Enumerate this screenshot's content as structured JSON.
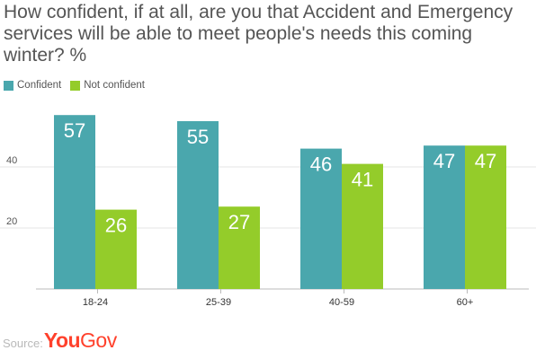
{
  "title": "How confident, if at all, are you that Accident and Emergency services will be able to meet people's needs this coming winter? %",
  "legend": [
    {
      "label": "Confident",
      "color": "#4aa7ad"
    },
    {
      "label": "Not confident",
      "color": "#94cc2a"
    }
  ],
  "source": {
    "label": "Source:",
    "brand_a": "You",
    "brand_b": "Gov"
  },
  "chart_data": {
    "type": "bar",
    "categories": [
      "18-24",
      "25-39",
      "40-59",
      "60+"
    ],
    "series": [
      {
        "name": "Confident",
        "values": [
          57,
          55,
          46,
          47
        ],
        "color": "#4aa7ad"
      },
      {
        "name": "Not confident",
        "values": [
          26,
          27,
          41,
          47
        ],
        "color": "#94cc2a"
      }
    ],
    "ylim": [
      0,
      60
    ],
    "yticks": [
      20,
      40
    ],
    "grid": true,
    "data_labels": true,
    "legend_position": "top-left"
  }
}
